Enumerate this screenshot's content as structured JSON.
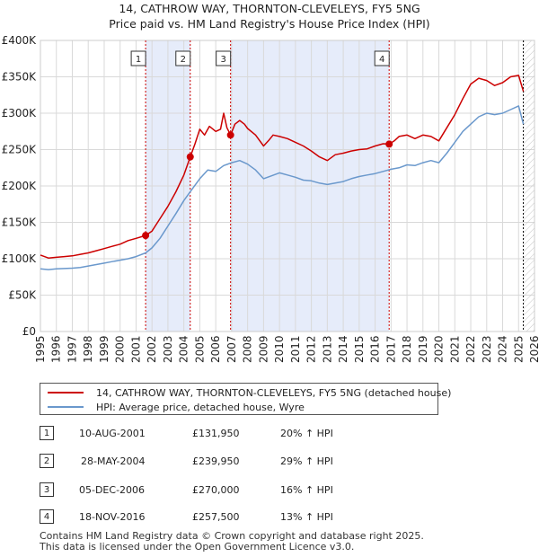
{
  "chart_data": {
    "type": "line",
    "title": "14, CATHROW WAY, THORNTON-CLEVELEYS, FY5 5NG",
    "subtitle": "Price paid vs. HM Land Registry's House Price Index (HPI)",
    "xlim": [
      1995,
      2026
    ],
    "ylim": [
      0,
      400000
    ],
    "x_ticks": [
      "1995",
      "1996",
      "1997",
      "1998",
      "1999",
      "2000",
      "2001",
      "2002",
      "2003",
      "2004",
      "2005",
      "2006",
      "2007",
      "2008",
      "2009",
      "2010",
      "2011",
      "2012",
      "2013",
      "2014",
      "2015",
      "2016",
      "2017",
      "2018",
      "2019",
      "2020",
      "2021",
      "2022",
      "2023",
      "2024",
      "2025",
      "2026"
    ],
    "y_ticks": [
      {
        "value": 0,
        "label": "£0"
      },
      {
        "value": 50000,
        "label": "£50K"
      },
      {
        "value": 100000,
        "label": "£100K"
      },
      {
        "value": 150000,
        "label": "£150K"
      },
      {
        "value": 200000,
        "label": "£200K"
      },
      {
        "value": 250000,
        "label": "£250K"
      },
      {
        "value": 300000,
        "label": "£300K"
      },
      {
        "value": 350000,
        "label": "£350K"
      },
      {
        "value": 400000,
        "label": "£400K"
      }
    ],
    "series": [
      {
        "name": "14, CATHROW WAY, THORNTON-CLEVELEYS, FY5 5NG (detached house)",
        "color": "#cc0000",
        "x": [
          1995.0,
          1995.5,
          1996.0,
          1996.5,
          1997.0,
          1997.5,
          1998.0,
          1998.5,
          1999.0,
          1999.5,
          2000.0,
          2000.5,
          2001.0,
          2001.6,
          2002.0,
          2002.5,
          2003.0,
          2003.5,
          2004.0,
          2004.4,
          2004.7,
          2005.0,
          2005.3,
          2005.6,
          2006.0,
          2006.3,
          2006.5,
          2006.7,
          2006.93,
          2007.2,
          2007.5,
          2007.8,
          2008.0,
          2008.5,
          2009.0,
          2009.3,
          2009.6,
          2010.0,
          2010.5,
          2011.0,
          2011.5,
          2012.0,
          2012.5,
          2013.0,
          2013.5,
          2014.0,
          2014.5,
          2015.0,
          2015.5,
          2016.0,
          2016.5,
          2016.88,
          2017.2,
          2017.5,
          2018.0,
          2018.5,
          2019.0,
          2019.5,
          2020.0,
          2020.5,
          2021.0,
          2021.5,
          2022.0,
          2022.5,
          2023.0,
          2023.5,
          2024.0,
          2024.5,
          2025.0,
          2025.3
        ],
        "values": [
          105000,
          101000,
          102000,
          103000,
          104000,
          106000,
          108000,
          111000,
          114000,
          117000,
          120000,
          125000,
          128000,
          131950,
          138000,
          155000,
          172000,
          192000,
          215000,
          239950,
          258000,
          278000,
          270000,
          282000,
          275000,
          278000,
          300000,
          280000,
          270000,
          285000,
          290000,
          285000,
          279000,
          270000,
          255000,
          262000,
          270000,
          268000,
          265000,
          260000,
          255000,
          248000,
          240000,
          235000,
          243000,
          245000,
          248000,
          250000,
          251000,
          255000,
          258000,
          257500,
          262000,
          268000,
          270000,
          265000,
          270000,
          268000,
          262000,
          280000,
          298000,
          320000,
          340000,
          348000,
          345000,
          338000,
          342000,
          350000,
          352000,
          330000
        ]
      },
      {
        "name": "HPI: Average price, detached house, Wyre",
        "color": "#6a98cc",
        "x": [
          1995.0,
          1995.5,
          1996.0,
          1996.5,
          1997.0,
          1997.5,
          1998.0,
          1998.5,
          1999.0,
          1999.5,
          2000.0,
          2000.5,
          2001.0,
          2001.6,
          2002.0,
          2002.5,
          2003.0,
          2003.5,
          2004.0,
          2004.5,
          2005.0,
          2005.5,
          2006.0,
          2006.5,
          2007.0,
          2007.5,
          2008.0,
          2008.5,
          2009.0,
          2009.5,
          2010.0,
          2010.5,
          2011.0,
          2011.5,
          2012.0,
          2012.5,
          2013.0,
          2013.5,
          2014.0,
          2014.5,
          2015.0,
          2015.5,
          2016.0,
          2016.5,
          2017.0,
          2017.5,
          2018.0,
          2018.5,
          2019.0,
          2019.5,
          2020.0,
          2020.5,
          2021.0,
          2021.5,
          2022.0,
          2022.5,
          2023.0,
          2023.5,
          2024.0,
          2024.5,
          2025.0,
          2025.3
        ],
        "values": [
          86000,
          85000,
          86000,
          86500,
          87000,
          88000,
          90000,
          92000,
          94000,
          96000,
          98000,
          100000,
          103000,
          108000,
          115000,
          128000,
          145000,
          162000,
          180000,
          195000,
          210000,
          222000,
          220000,
          228000,
          232000,
          235000,
          230000,
          222000,
          210000,
          214000,
          218000,
          215000,
          212000,
          208000,
          207000,
          204000,
          202000,
          204000,
          206000,
          210000,
          213000,
          215000,
          217000,
          220000,
          223000,
          225000,
          229000,
          228000,
          232000,
          235000,
          232000,
          245000,
          260000,
          275000,
          285000,
          295000,
          300000,
          298000,
          300000,
          305000,
          310000,
          285000
        ]
      }
    ],
    "sales": [
      {
        "label": "1",
        "x": 2001.6,
        "value": 131950
      },
      {
        "label": "2",
        "x": 2004.4,
        "value": 239950
      },
      {
        "label": "3",
        "x": 2006.93,
        "value": 270000
      },
      {
        "label": "4",
        "x": 2016.88,
        "value": 257500
      }
    ],
    "shaded_ranges": [
      [
        2001.6,
        2004.4
      ],
      [
        2006.93,
        2016.88
      ]
    ],
    "legend": [
      {
        "label": "14, CATHROW WAY, THORNTON-CLEVELEYS, FY5 5NG (detached house)",
        "color": "#cc0000"
      },
      {
        "label": "HPI: Average price, detached house, Wyre",
        "color": "#6a98cc"
      }
    ]
  },
  "table": [
    {
      "num": "1",
      "date": "10-AUG-2001",
      "price": "£131,950",
      "hpi": "20% ↑ HPI"
    },
    {
      "num": "2",
      "date": "28-MAY-2004",
      "price": "£239,950",
      "hpi": "29% ↑ HPI"
    },
    {
      "num": "3",
      "date": "05-DEC-2006",
      "price": "£270,000",
      "hpi": "16% ↑ HPI"
    },
    {
      "num": "4",
      "date": "18-NOV-2016",
      "price": "£257,500",
      "hpi": "13% ↑ HPI"
    }
  ],
  "footer": {
    "line1": "Contains HM Land Registry data © Crown copyright and database right 2025.",
    "line2": "This data is licensed under the Open Government Licence v3.0."
  }
}
